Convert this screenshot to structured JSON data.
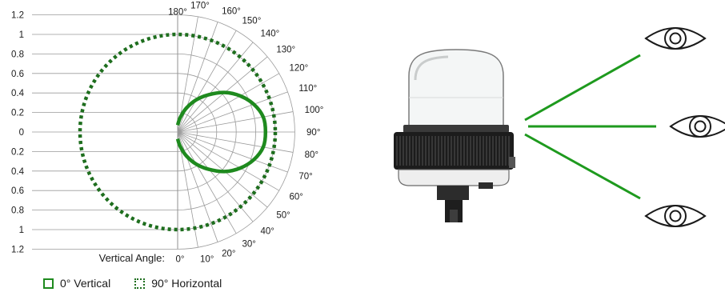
{
  "chart_data": {
    "type": "polar",
    "title": "",
    "axis_label": "Vertical Angle:",
    "radial_ticks": [
      "1.2",
      "1",
      "0.8",
      "0.6",
      "0.4",
      "0.2",
      "0",
      "0.2",
      "0.4",
      "0.6",
      "0.8",
      "1",
      "1.2"
    ],
    "angle_ticks": [
      "0°",
      "10°",
      "20°",
      "30°",
      "40°",
      "50°",
      "60°",
      "70°",
      "80°",
      "90°",
      "100°",
      "110°",
      "120°",
      "130°",
      "140°",
      "150°",
      "160°",
      "170°",
      "180°"
    ],
    "rlim": [
      0,
      1.2
    ],
    "grid": true,
    "legend_position": "bottom-left",
    "series": [
      {
        "name": "0° Vertical",
        "style": "solid",
        "color": "#1e8a1e",
        "angles": [
          0,
          10,
          20,
          30,
          40,
          50,
          60,
          70,
          80,
          90,
          100,
          110,
          120,
          130,
          140,
          150,
          160,
          170,
          180
        ],
        "values": [
          0.07,
          0.15,
          0.26,
          0.38,
          0.5,
          0.63,
          0.74,
          0.83,
          0.89,
          0.9,
          0.89,
          0.83,
          0.74,
          0.63,
          0.5,
          0.38,
          0.26,
          0.15,
          0.07
        ]
      },
      {
        "name": "90° Horizontal",
        "style": "dotted",
        "color": "#1e6e1e",
        "angles": [
          0,
          30,
          60,
          90,
          120,
          150,
          180
        ],
        "values": [
          1,
          1,
          1,
          1,
          1,
          1,
          1
        ],
        "full_circle": true
      }
    ]
  },
  "legend": {
    "solid_label": "0° Vertical",
    "dotted_label": "90° Horizontal"
  },
  "colors": {
    "beam": "#1e9a1e",
    "grid": "#9a9a9a"
  },
  "icons": [
    "beacon-light-icon",
    "eye-icon",
    "eye-icon",
    "eye-icon"
  ]
}
